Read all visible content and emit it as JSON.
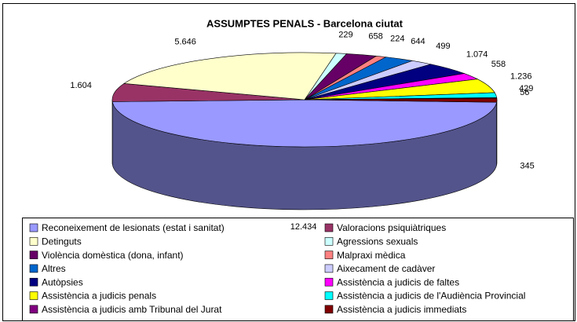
{
  "chart_data": {
    "type": "pie",
    "title": "ASSUMPTES PENALS - Barcelona ciutat",
    "categories": [
      "Reconeixement de lesionats (estat i sanitat)",
      "Valoracions psiquiàtriques",
      "Detinguts",
      "Agressions sexuals",
      "Violència domèstica (dona, infant)",
      "Malpraxi mèdica",
      "Altres",
      "Aixecament de cadàver",
      "Autòpsies",
      "Assistència a judicis de faltes",
      "Assistència a judicis penals",
      "Assistència a judicis de l'Audiència Provincial",
      "Assistència a judicis amb Tribunal del Jurat",
      "Assistència a judicis immediats"
    ],
    "values": [
      12434,
      1604,
      5646,
      229,
      658,
      224,
      644,
      499,
      1074,
      558,
      1236,
      429,
      56,
      345
    ],
    "value_labels": [
      "12.434",
      "1.604",
      "5.646",
      "229",
      "658",
      "224",
      "644",
      "499",
      "1.074",
      "558",
      "1.236",
      "429",
      "56",
      "345"
    ],
    "colors": [
      "#9999ff",
      "#993366",
      "#ffffcc",
      "#ccffff",
      "#660066",
      "#ff8080",
      "#0066cc",
      "#ccccff",
      "#000080",
      "#ff00ff",
      "#ffff00",
      "#00ffff",
      "#800080",
      "#800000"
    ],
    "legend": "bottom"
  }
}
